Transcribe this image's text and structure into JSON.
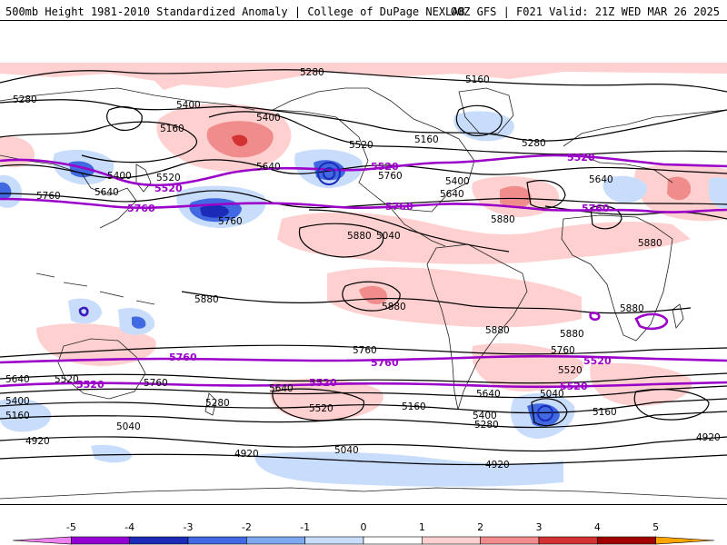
{
  "header": {
    "left_title": "500mb Height 1981-2010 Standardized Anomaly | College of DuPage NEXLAB",
    "right_title": "00Z GFS | F021 Valid: 21Z WED MAR 26 2025"
  },
  "contour_labels": {
    "black": [
      "5280",
      "5160",
      "5280",
      "5400",
      "5160",
      "5400",
      "5520",
      "5640",
      "5760",
      "5640",
      "5760",
      "5400",
      "5160",
      "5280",
      "5640",
      "5520",
      "5760",
      "5640",
      "5400",
      "5880",
      "5880",
      "5880",
      "5880",
      "5880",
      "5880",
      "5880",
      "5880",
      "5760",
      "5760",
      "5760",
      "5640",
      "5520",
      "5400",
      "5280",
      "5160",
      "5040",
      "4920",
      "4920",
      "5040",
      "4920",
      "5160",
      "5280",
      "5400",
      "5040",
      "5160",
      "5520",
      "5640",
      "5640",
      "5520",
      "4920",
      "5040"
    ],
    "purple": [
      "5520",
      "5520",
      "5520",
      "5760",
      "5760",
      "5760",
      "5760",
      "5520",
      "5520",
      "5520",
      "5760",
      "5520"
    ]
  },
  "colorbar": {
    "ticks": [
      "-5",
      "-4",
      "-3",
      "-2",
      "-1",
      "0",
      "1",
      "2",
      "3",
      "4",
      "5"
    ],
    "colors": [
      "#ee82ee",
      "#9400d3",
      "#1a2bb8",
      "#4169e1",
      "#7ea8f0",
      "#c8dcfb",
      "#ffffff",
      "#ffd0d0",
      "#f08c8c",
      "#d23232",
      "#a00000",
      "#ffa500"
    ]
  }
}
